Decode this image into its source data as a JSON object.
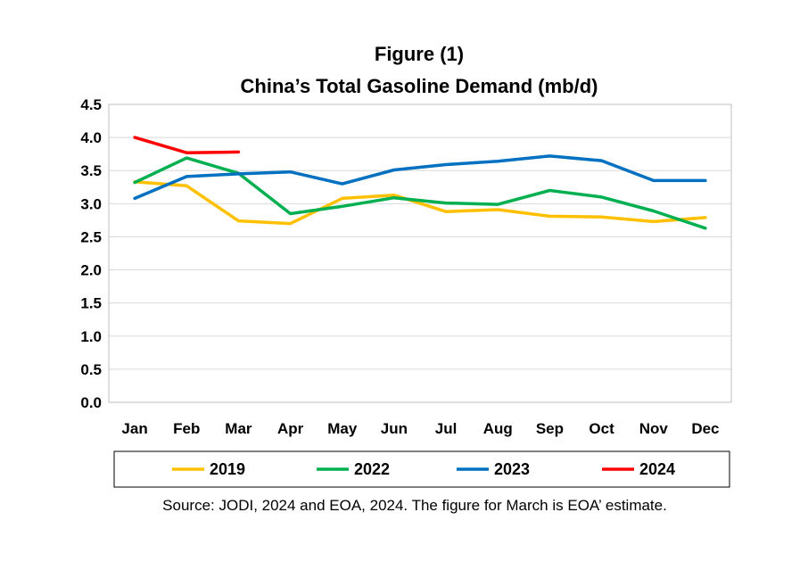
{
  "chart_data": {
    "type": "line",
    "title_line1": "Figure (1)",
    "title_line2": "China’s Total Gasoline Demand (mb/d)",
    "categories": [
      "Jan",
      "Feb",
      "Mar",
      "Apr",
      "May",
      "Jun",
      "Jul",
      "Aug",
      "Sep",
      "Oct",
      "Nov",
      "Dec"
    ],
    "y_ticks": [
      "0.0",
      "0.5",
      "1.0",
      "1.5",
      "2.0",
      "2.5",
      "3.0",
      "3.5",
      "4.0",
      "4.5"
    ],
    "ylim": [
      0,
      4.5
    ],
    "grid": true,
    "legend_position": "bottom",
    "series": [
      {
        "name": "2019",
        "color": "#FFC000",
        "values": [
          3.33,
          3.27,
          2.74,
          2.7,
          3.08,
          3.13,
          2.88,
          2.91,
          2.81,
          2.8,
          2.73,
          2.79
        ]
      },
      {
        "name": "2022",
        "color": "#00B050",
        "values": [
          3.32,
          3.69,
          3.46,
          2.85,
          2.96,
          3.09,
          3.01,
          2.99,
          3.2,
          3.1,
          2.89,
          2.63
        ]
      },
      {
        "name": "2023",
        "color": "#0070C0",
        "values": [
          3.08,
          3.41,
          3.45,
          3.48,
          3.3,
          3.51,
          3.59,
          3.64,
          3.72,
          3.65,
          3.35,
          3.35
        ]
      },
      {
        "name": "2024",
        "color": "#FF0000",
        "values": [
          4.0,
          3.77,
          3.78,
          null,
          null,
          null,
          null,
          null,
          null,
          null,
          null,
          null
        ]
      }
    ],
    "source": "Source: JODI, 2024 and EOA, 2024. The figure for March is EOA’ estimate."
  }
}
